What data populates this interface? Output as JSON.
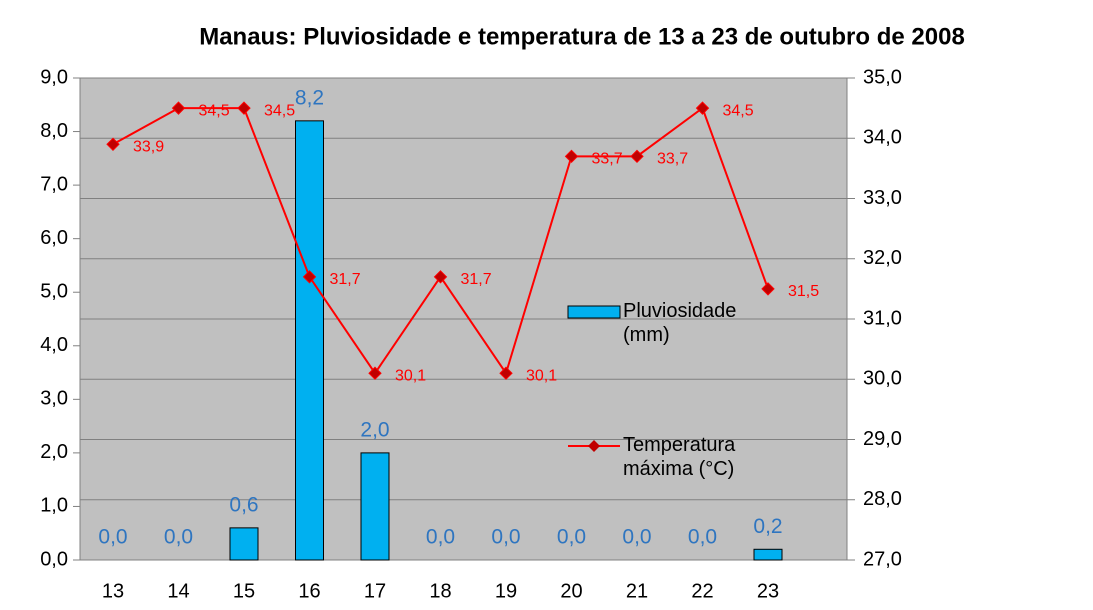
{
  "chart_data": {
    "type": "bar_line",
    "title": "Manaus: Pluviosidade e temperatura de 13 a 23 de outubro de 2008",
    "categories": [
      "13",
      "14",
      "15",
      "16",
      "17",
      "18",
      "19",
      "20",
      "21",
      "22",
      "23"
    ],
    "series": [
      {
        "name": "Pluviosidade (mm)",
        "type": "bar",
        "color": "#00b0f0",
        "label_color": "#2e75c0",
        "values": [
          0,
          0,
          0.6,
          8.2,
          2.0,
          0,
          0,
          0,
          0,
          0,
          0.2
        ],
        "value_labels": [
          "0,0",
          "0,0",
          "0,6",
          "8,2",
          "2,0",
          "0,0",
          "0,0",
          "0,0",
          "0,0",
          "0,0",
          "0,2"
        ]
      },
      {
        "name": "Temperatura máxima (°C)",
        "type": "line",
        "axis": "y2",
        "color": "#ff0000",
        "marker_color": "#c00000",
        "values": [
          33.9,
          34.5,
          34.5,
          31.7,
          30.1,
          31.7,
          30.1,
          33.7,
          33.7,
          34.5,
          31.5
        ],
        "value_labels": [
          "33,9",
          "34,5",
          "34,5",
          "31,7",
          "30,1",
          "31,7",
          "30,1",
          "33,7",
          "33,7",
          "34,5",
          "31,5"
        ]
      }
    ],
    "ylim": [
      0,
      9
    ],
    "yticks": [
      {
        "value": 0,
        "label": "0,0"
      },
      {
        "value": 1,
        "label": "1,0"
      },
      {
        "value": 2,
        "label": "2,0"
      },
      {
        "value": 3,
        "label": "3,0"
      },
      {
        "value": 4,
        "label": "4,0"
      },
      {
        "value": 5,
        "label": "5,0"
      },
      {
        "value": 6,
        "label": "6,0"
      },
      {
        "value": 7,
        "label": "7,0"
      },
      {
        "value": 8,
        "label": "8,0"
      },
      {
        "value": 9,
        "label": "9,0"
      }
    ],
    "y2lim": [
      27,
      35
    ],
    "y2ticks": [
      {
        "value": 27,
        "label": "27,0"
      },
      {
        "value": 28,
        "label": "28,0"
      },
      {
        "value": 29,
        "label": "29,0"
      },
      {
        "value": 30,
        "label": "30,0"
      },
      {
        "value": 31,
        "label": "31,0"
      },
      {
        "value": 32,
        "label": "32,0"
      },
      {
        "value": 33,
        "label": "33,0"
      },
      {
        "value": 34,
        "label": "34,0"
      },
      {
        "value": 35,
        "label": "35,0"
      }
    ],
    "grid": true,
    "legend": "right",
    "background": "#c0c0c0"
  }
}
